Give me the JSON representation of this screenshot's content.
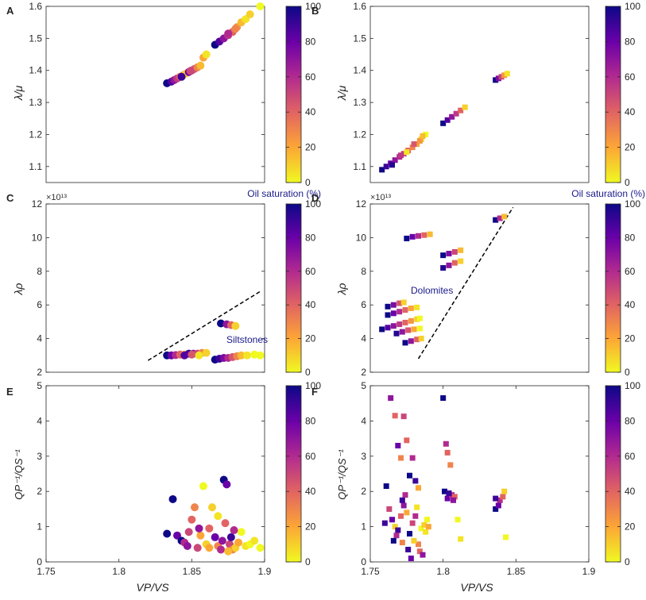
{
  "colormap": [
    "#f0f921",
    "#fca636",
    "#e16462",
    "#b12a90",
    "#6a00a8",
    "#0d0887"
  ],
  "colorbar": {
    "ticks": [
      0,
      20,
      40,
      60,
      80,
      100
    ],
    "label": "Oil saturation (%)"
  },
  "chart_data": [
    {
      "panel": "A",
      "type": "scatter",
      "marker": "circle",
      "xlabel": "",
      "ylabel": "λ/μ",
      "xlim": [
        1.75,
        1.9
      ],
      "ylim": [
        1.05,
        1.6
      ],
      "yticks": [
        1.1,
        1.2,
        1.3,
        1.4,
        1.5,
        1.6
      ],
      "points": [
        [
          1.833,
          1.36,
          100
        ],
        [
          1.836,
          1.365,
          85
        ],
        [
          1.838,
          1.37,
          70
        ],
        [
          1.84,
          1.375,
          55
        ],
        [
          1.842,
          1.38,
          40
        ],
        [
          1.844,
          1.385,
          25
        ],
        [
          1.846,
          1.39,
          10
        ],
        [
          1.848,
          1.395,
          80
        ],
        [
          1.85,
          1.4,
          60
        ],
        [
          1.852,
          1.405,
          45
        ],
        [
          1.854,
          1.41,
          30
        ],
        [
          1.856,
          1.415,
          15
        ],
        [
          1.843,
          1.38,
          90
        ],
        [
          1.849,
          1.398,
          50
        ],
        [
          1.858,
          1.44,
          20
        ],
        [
          1.86,
          1.45,
          5
        ],
        [
          1.866,
          1.48,
          100
        ],
        [
          1.869,
          1.49,
          85
        ],
        [
          1.872,
          1.5,
          70
        ],
        [
          1.875,
          1.51,
          55
        ],
        [
          1.878,
          1.52,
          40
        ],
        [
          1.881,
          1.535,
          25
        ],
        [
          1.884,
          1.55,
          15
        ],
        [
          1.887,
          1.56,
          5
        ],
        [
          1.89,
          1.575,
          10
        ],
        [
          1.897,
          1.6,
          0
        ],
        [
          1.875,
          1.515,
          60
        ],
        [
          1.88,
          1.53,
          30
        ]
      ]
    },
    {
      "panel": "B",
      "type": "scatter",
      "marker": "square",
      "xlabel": "",
      "ylabel": "λ/μ",
      "xlim": [
        1.75,
        1.9
      ],
      "ylim": [
        1.05,
        1.6
      ],
      "yticks": [
        1.1,
        1.2,
        1.3,
        1.4,
        1.5,
        1.6
      ],
      "points": [
        [
          1.758,
          1.09,
          100
        ],
        [
          1.761,
          1.1,
          90
        ],
        [
          1.764,
          1.11,
          80
        ],
        [
          1.767,
          1.12,
          70
        ],
        [
          1.77,
          1.13,
          60
        ],
        [
          1.773,
          1.14,
          50
        ],
        [
          1.776,
          1.15,
          40
        ],
        [
          1.779,
          1.16,
          30
        ],
        [
          1.782,
          1.17,
          20
        ],
        [
          1.785,
          1.185,
          10
        ],
        [
          1.788,
          1.2,
          0
        ],
        [
          1.765,
          1.105,
          95
        ],
        [
          1.771,
          1.135,
          55
        ],
        [
          1.775,
          1.145,
          5
        ],
        [
          1.78,
          1.17,
          45
        ],
        [
          1.784,
          1.18,
          25
        ],
        [
          1.786,
          1.195,
          15
        ],
        [
          1.8,
          1.235,
          100
        ],
        [
          1.803,
          1.245,
          85
        ],
        [
          1.806,
          1.255,
          70
        ],
        [
          1.809,
          1.265,
          55
        ],
        [
          1.812,
          1.275,
          40
        ],
        [
          1.815,
          1.285,
          10
        ],
        [
          1.836,
          1.37,
          100
        ],
        [
          1.838,
          1.375,
          75
        ],
        [
          1.84,
          1.38,
          50
        ],
        [
          1.842,
          1.385,
          25
        ],
        [
          1.844,
          1.39,
          5
        ]
      ]
    },
    {
      "panel": "C",
      "type": "scatter",
      "marker": "circle",
      "xlabel": "",
      "ylabel": "λρ",
      "exponent": "×10¹³",
      "xlim": [
        1.75,
        1.9
      ],
      "ylim": [
        2,
        12
      ],
      "yticks": [
        2,
        4,
        6,
        8,
        10,
        12
      ],
      "annotation": "Siltstones",
      "trendline": [
        [
          1.82,
          2.7
        ],
        [
          1.897,
          6.8
        ]
      ],
      "points": [
        [
          1.833,
          3.0,
          100
        ],
        [
          1.836,
          3.0,
          80
        ],
        [
          1.839,
          3.02,
          60
        ],
        [
          1.842,
          3.05,
          40
        ],
        [
          1.845,
          3.05,
          20
        ],
        [
          1.848,
          3.1,
          90
        ],
        [
          1.851,
          3.1,
          70
        ],
        [
          1.854,
          3.1,
          50
        ],
        [
          1.857,
          3.15,
          30
        ],
        [
          1.86,
          3.15,
          10
        ],
        [
          1.845,
          3.0,
          85
        ],
        [
          1.85,
          3.05,
          45
        ],
        [
          1.855,
          3.0,
          5
        ],
        [
          1.866,
          2.75,
          100
        ],
        [
          1.869,
          2.8,
          90
        ],
        [
          1.872,
          2.85,
          75
        ],
        [
          1.875,
          2.85,
          60
        ],
        [
          1.878,
          2.9,
          45
        ],
        [
          1.881,
          2.95,
          30
        ],
        [
          1.884,
          3.0,
          15
        ],
        [
          1.888,
          3.0,
          5
        ],
        [
          1.893,
          3.05,
          0
        ],
        [
          1.897,
          3.0,
          0
        ],
        [
          1.87,
          4.9,
          100
        ],
        [
          1.874,
          4.85,
          70
        ],
        [
          1.877,
          4.8,
          40
        ],
        [
          1.88,
          4.75,
          10
        ]
      ]
    },
    {
      "panel": "D",
      "type": "scatter",
      "marker": "square",
      "xlabel": "",
      "ylabel": "λρ",
      "exponent": "×10¹³",
      "xlim": [
        1.75,
        1.9
      ],
      "ylim": [
        2,
        12
      ],
      "yticks": [
        2,
        4,
        6,
        8,
        10,
        12
      ],
      "annotation": "Dolomites",
      "trendline": [
        [
          1.783,
          2.8
        ],
        [
          1.848,
          11.8
        ]
      ],
      "points": [
        [
          1.758,
          4.55,
          100
        ],
        [
          1.762,
          4.65,
          85
        ],
        [
          1.766,
          4.75,
          70
        ],
        [
          1.77,
          4.85,
          55
        ],
        [
          1.774,
          4.95,
          40
        ],
        [
          1.778,
          5.05,
          25
        ],
        [
          1.782,
          5.15,
          10
        ],
        [
          1.784,
          5.2,
          0
        ],
        [
          1.762,
          5.4,
          100
        ],
        [
          1.766,
          5.5,
          80
        ],
        [
          1.77,
          5.6,
          60
        ],
        [
          1.774,
          5.7,
          40
        ],
        [
          1.778,
          5.8,
          20
        ],
        [
          1.782,
          5.85,
          5
        ],
        [
          1.762,
          5.9,
          100
        ],
        [
          1.766,
          6.0,
          75
        ],
        [
          1.77,
          6.1,
          45
        ],
        [
          1.773,
          6.15,
          10
        ],
        [
          1.768,
          4.3,
          95
        ],
        [
          1.772,
          4.4,
          70
        ],
        [
          1.776,
          4.5,
          45
        ],
        [
          1.78,
          4.55,
          20
        ],
        [
          1.784,
          4.6,
          0
        ],
        [
          1.774,
          3.75,
          100
        ],
        [
          1.778,
          3.85,
          70
        ],
        [
          1.782,
          3.95,
          40
        ],
        [
          1.785,
          4.0,
          10
        ],
        [
          1.775,
          9.95,
          100
        ],
        [
          1.779,
          10.05,
          80
        ],
        [
          1.783,
          10.1,
          60
        ],
        [
          1.787,
          10.15,
          40
        ],
        [
          1.791,
          10.2,
          15
        ],
        [
          1.8,
          8.95,
          100
        ],
        [
          1.804,
          9.05,
          75
        ],
        [
          1.808,
          9.15,
          50
        ],
        [
          1.812,
          9.25,
          15
        ],
        [
          1.8,
          8.2,
          95
        ],
        [
          1.804,
          8.35,
          70
        ],
        [
          1.808,
          8.5,
          40
        ],
        [
          1.812,
          8.6,
          10
        ],
        [
          1.836,
          11.05,
          100
        ],
        [
          1.839,
          11.15,
          60
        ],
        [
          1.842,
          11.25,
          15
        ]
      ]
    },
    {
      "panel": "E",
      "type": "scatter",
      "marker": "circle",
      "xlabel": "VP/VS",
      "ylabel": "QP⁻¹/QS⁻¹",
      "xlim": [
        1.75,
        1.9
      ],
      "ylim": [
        0,
        5
      ],
      "xticks": [
        1.75,
        1.8,
        1.85,
        1.9
      ],
      "yticks": [
        0,
        1,
        2,
        3,
        4,
        5
      ],
      "points": [
        [
          1.833,
          0.8,
          100
        ],
        [
          1.837,
          1.78,
          100
        ],
        [
          1.84,
          0.75,
          80
        ],
        [
          1.843,
          0.6,
          100
        ],
        [
          1.845,
          0.55,
          60
        ],
        [
          1.847,
          0.45,
          70
        ],
        [
          1.848,
          0.85,
          50
        ],
        [
          1.85,
          1.2,
          40
        ],
        [
          1.852,
          1.55,
          30
        ],
        [
          1.854,
          0.4,
          50
        ],
        [
          1.856,
          0.75,
          20
        ],
        [
          1.858,
          2.15,
          0
        ],
        [
          1.86,
          0.5,
          10
        ],
        [
          1.862,
          0.4,
          20
        ],
        [
          1.864,
          1.55,
          10
        ],
        [
          1.866,
          0.7,
          80
        ],
        [
          1.868,
          0.45,
          30
        ],
        [
          1.87,
          0.35,
          60
        ],
        [
          1.872,
          2.33,
          100
        ],
        [
          1.874,
          2.2,
          80
        ],
        [
          1.876,
          0.5,
          50
        ],
        [
          1.878,
          0.35,
          30
        ],
        [
          1.88,
          0.4,
          10
        ],
        [
          1.882,
          0.55,
          20
        ],
        [
          1.884,
          0.85,
          0
        ],
        [
          1.887,
          0.45,
          5
        ],
        [
          1.89,
          0.5,
          0
        ],
        [
          1.893,
          0.6,
          5
        ],
        [
          1.897,
          0.4,
          0
        ],
        [
          1.871,
          0.6,
          70
        ],
        [
          1.873,
          1.1,
          40
        ],
        [
          1.877,
          0.7,
          90
        ],
        [
          1.879,
          0.9,
          60
        ],
        [
          1.875,
          0.3,
          15
        ],
        [
          1.868,
          1.3,
          5
        ],
        [
          1.862,
          0.95,
          40
        ],
        [
          1.855,
          0.95,
          70
        ]
      ]
    },
    {
      "panel": "F",
      "type": "scatter",
      "marker": "square",
      "xlabel": "VP/VS",
      "ylabel": "QP⁻¹/QS⁻¹",
      "xlim": [
        1.75,
        1.9
      ],
      "ylim": [
        0,
        5
      ],
      "xticks": [
        1.75,
        1.8,
        1.85,
        1.9
      ],
      "yticks": [
        0,
        1,
        2,
        3,
        4,
        5
      ],
      "points": [
        [
          1.764,
          4.65,
          70
        ],
        [
          1.767,
          4.15,
          40
        ],
        [
          1.769,
          3.3,
          80
        ],
        [
          1.771,
          2.95,
          30
        ],
        [
          1.773,
          4.13,
          50
        ],
        [
          1.775,
          3.45,
          40
        ],
        [
          1.777,
          2.45,
          100
        ],
        [
          1.779,
          2.95,
          60
        ],
        [
          1.781,
          2.3,
          90
        ],
        [
          1.783,
          2.1,
          20
        ],
        [
          1.761,
          2.15,
          100
        ],
        [
          1.763,
          1.5,
          50
        ],
        [
          1.765,
          1.2,
          80
        ],
        [
          1.767,
          1.0,
          10
        ],
        [
          1.769,
          0.9,
          90
        ],
        [
          1.771,
          1.3,
          40
        ],
        [
          1.773,
          1.6,
          70
        ],
        [
          1.775,
          1.4,
          20
        ],
        [
          1.777,
          0.8,
          100
        ],
        [
          1.779,
          1.1,
          50
        ],
        [
          1.781,
          1.3,
          60
        ],
        [
          1.783,
          0.5,
          30
        ],
        [
          1.785,
          0.95,
          0
        ],
        [
          1.787,
          1.05,
          10
        ],
        [
          1.789,
          1.2,
          0
        ],
        [
          1.76,
          1.1,
          90
        ],
        [
          1.768,
          0.75,
          60
        ],
        [
          1.772,
          0.55,
          30
        ],
        [
          1.776,
          0.35,
          90
        ],
        [
          1.78,
          0.6,
          10
        ],
        [
          1.784,
          0.3,
          40
        ],
        [
          1.788,
          0.85,
          5
        ],
        [
          1.79,
          1.0,
          20
        ],
        [
          1.778,
          0.1,
          80
        ],
        [
          1.774,
          1.9,
          60
        ],
        [
          1.772,
          1.75,
          90
        ],
        [
          1.766,
          0.6,
          100
        ],
        [
          1.782,
          1.55,
          5
        ],
        [
          1.786,
          0.2,
          70
        ],
        [
          1.8,
          4.65,
          100
        ],
        [
          1.802,
          3.35,
          60
        ],
        [
          1.803,
          3.1,
          40
        ],
        [
          1.805,
          2.75,
          30
        ],
        [
          1.801,
          2.0,
          100
        ],
        [
          1.803,
          1.8,
          80
        ],
        [
          1.806,
          1.9,
          60
        ],
        [
          1.808,
          1.85,
          40
        ],
        [
          1.804,
          1.95,
          90
        ],
        [
          1.81,
          1.2,
          0
        ],
        [
          1.812,
          0.65,
          5
        ],
        [
          1.807,
          1.75,
          70
        ],
        [
          1.836,
          1.5,
          100
        ],
        [
          1.838,
          1.6,
          80
        ],
        [
          1.839,
          1.75,
          60
        ],
        [
          1.841,
          1.85,
          40
        ],
        [
          1.842,
          2.0,
          10
        ],
        [
          1.836,
          1.8,
          90
        ],
        [
          1.843,
          0.7,
          0
        ]
      ]
    }
  ]
}
